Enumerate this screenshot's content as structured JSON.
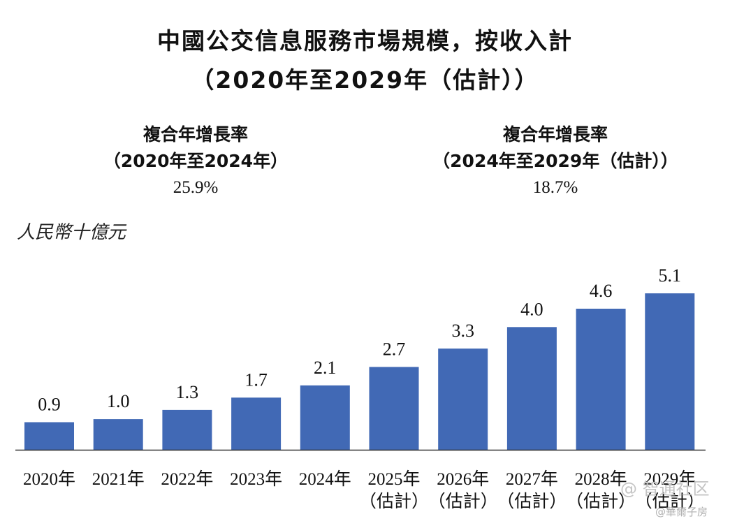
{
  "title": {
    "line1": "中國公交信息服務市場規模，按收入計",
    "line2": "（2020年至2029年（估計））"
  },
  "cagr": [
    {
      "label": "複合年增長率",
      "period": "（2020年至2024年）",
      "value": "25.9%"
    },
    {
      "label": "複合年增長率",
      "period": "（2024年至2029年（估計））",
      "value": "18.7%"
    }
  ],
  "unit_label": "人民幣十億元",
  "watermark": {
    "main": "@ 智通社区",
    "sub": "@華爾子房"
  },
  "colors": {
    "bar": "#4169b5",
    "axis": "#333333"
  },
  "chart_data": {
    "type": "bar",
    "categories": [
      [
        "2020年"
      ],
      [
        "2021年"
      ],
      [
        "2022年"
      ],
      [
        "2023年"
      ],
      [
        "2024年"
      ],
      [
        "2025年",
        "（估計）"
      ],
      [
        "2026年",
        "（估計）"
      ],
      [
        "2027年",
        "（估計）"
      ],
      [
        "2028年",
        "（估計）"
      ],
      [
        "2029年",
        "（估計）"
      ]
    ],
    "values": [
      0.9,
      1.0,
      1.3,
      1.7,
      2.1,
      2.7,
      3.3,
      4.0,
      4.6,
      5.1
    ],
    "value_labels": [
      "0.9",
      "1.0",
      "1.3",
      "1.7",
      "2.1",
      "2.7",
      "3.3",
      "4.0",
      "4.6",
      "5.1"
    ],
    "ylabel": "人民幣十億元",
    "ylim": [
      0,
      5.1
    ],
    "grid": false,
    "legend": "none"
  }
}
